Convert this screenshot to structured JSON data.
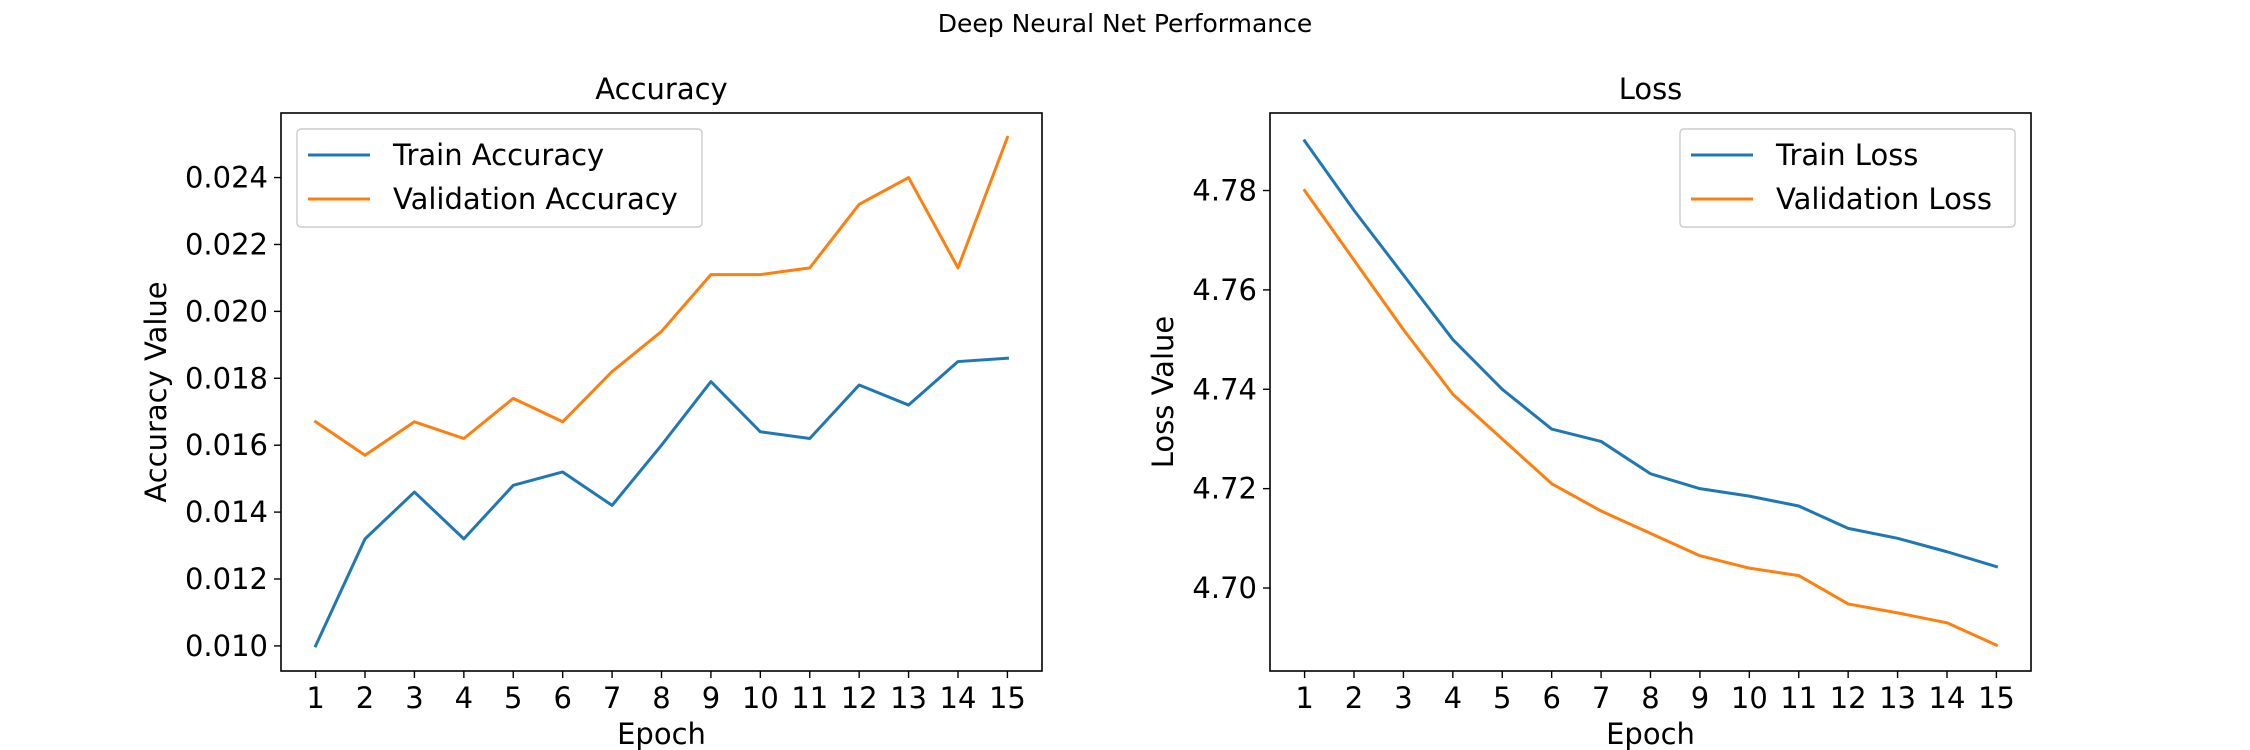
{
  "figure": {
    "suptitle": "Deep Neural Net Performance"
  },
  "colors": {
    "series_1": "#1f77b4",
    "series_2": "#ff7f0e",
    "axes": "#000000"
  },
  "chart_data": [
    {
      "type": "line",
      "title": "Accuracy",
      "xlabel": "Epoch",
      "ylabel": "Accuracy Value",
      "x": [
        1,
        2,
        3,
        4,
        5,
        6,
        7,
        8,
        9,
        10,
        11,
        12,
        13,
        14,
        15
      ],
      "xlim": [
        0.3,
        15.7
      ],
      "ylim": [
        0.00925,
        0.02593
      ],
      "xticks": [
        1,
        2,
        3,
        4,
        5,
        6,
        7,
        8,
        9,
        10,
        11,
        12,
        13,
        14,
        15
      ],
      "yticks": [
        "0.010",
        "0.012",
        "0.014",
        "0.016",
        "0.018",
        "0.020",
        "0.022",
        "0.024"
      ],
      "grid": false,
      "legend": "upper left",
      "series": [
        {
          "name": "Train Accuracy",
          "color": "#1f77b4",
          "values": [
            0.01,
            0.0132,
            0.0146,
            0.0132,
            0.0148,
            0.0152,
            0.0142,
            0.016,
            0.0179,
            0.0164,
            0.0162,
            0.0178,
            0.0172,
            0.0185,
            0.0186
          ]
        },
        {
          "name": "Validation Accuracy",
          "color": "#ff7f0e",
          "values": [
            0.0167,
            0.0157,
            0.0167,
            0.0162,
            0.0174,
            0.0167,
            0.0182,
            0.0194,
            0.0211,
            0.0211,
            0.0213,
            0.0232,
            0.024,
            0.0213,
            0.0252
          ]
        }
      ]
    },
    {
      "type": "line",
      "title": "Loss",
      "xlabel": "Epoch",
      "ylabel": "Loss Value",
      "x": [
        1,
        2,
        3,
        4,
        5,
        6,
        7,
        8,
        9,
        10,
        11,
        12,
        13,
        14,
        15
      ],
      "xlim": [
        0.3,
        15.7
      ],
      "ylim": [
        4.6833,
        4.7956
      ],
      "xticks": [
        1,
        2,
        3,
        4,
        5,
        6,
        7,
        8,
        9,
        10,
        11,
        12,
        13,
        14,
        15
      ],
      "yticks": [
        "4.70",
        "4.72",
        "4.74",
        "4.76",
        "4.78"
      ],
      "grid": false,
      "legend": "upper right",
      "series": [
        {
          "name": "Train Loss",
          "color": "#1f77b4",
          "values": [
            4.79,
            4.776,
            4.763,
            4.75,
            4.74,
            4.732,
            4.7295,
            4.723,
            4.72,
            4.7185,
            4.7165,
            4.712,
            4.71,
            4.7073,
            4.7043
          ]
        },
        {
          "name": "Validation Loss",
          "color": "#ff7f0e",
          "values": [
            4.78,
            4.766,
            4.752,
            4.739,
            4.73,
            4.721,
            4.7155,
            4.711,
            4.7065,
            4.704,
            4.7025,
            4.6968,
            4.695,
            4.693,
            4.6885
          ]
        }
      ]
    }
  ]
}
